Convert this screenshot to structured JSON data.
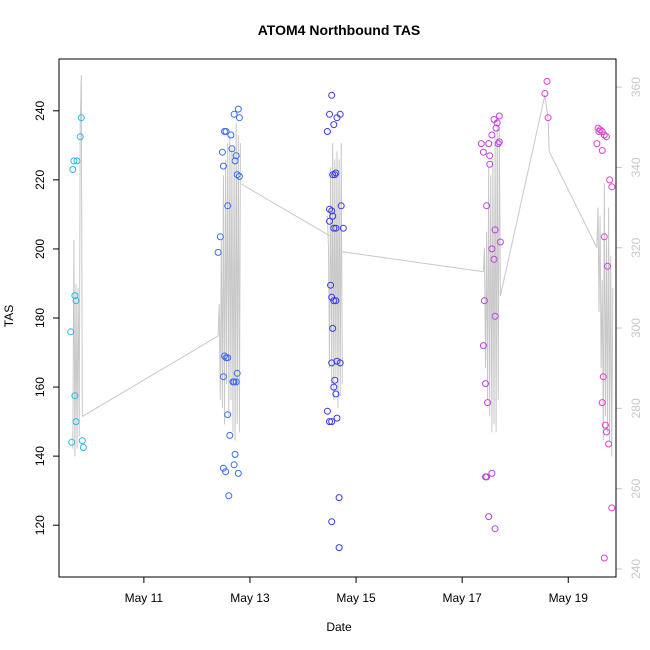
{
  "chart_data": {
    "type": "scatter",
    "title": "ATOM4 Northbound TAS",
    "xlabel": "Date",
    "ylabel": "TAS",
    "xlim": [
      9.4,
      19.9
    ],
    "ylim": [
      105,
      255
    ],
    "y2lim": [
      238,
      367
    ],
    "x_ticks": [
      {
        "value": 11,
        "label": "May 11"
      },
      {
        "value": 13,
        "label": "May 13"
      },
      {
        "value": 15,
        "label": "May 15"
      },
      {
        "value": 17,
        "label": "May 17"
      },
      {
        "value": 19,
        "label": "May 19"
      }
    ],
    "y_ticks": [
      120,
      140,
      160,
      180,
      200,
      220,
      240
    ],
    "y2_ticks": [
      240,
      260,
      280,
      300,
      320,
      340,
      360
    ],
    "colors": {
      "group1": "#2fb6e8",
      "group2": "#3a6df0",
      "group3": "#3a3ae8",
      "group4": "#c040e0",
      "group5": "#e040d0",
      "line": "#c8c8c8"
    },
    "scatter_groups": [
      {
        "color_key": "group1",
        "points": [
          [
            9.66,
            223
          ],
          [
            9.68,
            225.5
          ],
          [
            9.74,
            225.5
          ],
          [
            9.64,
            144
          ],
          [
            9.62,
            176
          ],
          [
            9.7,
            186.5
          ],
          [
            9.72,
            185
          ],
          [
            9.7,
            157.5
          ],
          [
            9.72,
            150
          ],
          [
            9.8,
            232.5
          ],
          [
            9.82,
            238
          ],
          [
            9.84,
            144.5
          ],
          [
            9.86,
            142.5
          ]
        ]
      },
      {
        "color_key": "group2",
        "points": [
          [
            12.4,
            199
          ],
          [
            12.44,
            203.5
          ],
          [
            12.48,
            228
          ],
          [
            12.5,
            224
          ],
          [
            12.52,
            234
          ],
          [
            12.55,
            234
          ],
          [
            12.58,
            212.5
          ],
          [
            12.52,
            169
          ],
          [
            12.55,
            168.5
          ],
          [
            12.58,
            168.5
          ],
          [
            12.5,
            163
          ],
          [
            12.58,
            152
          ],
          [
            12.62,
            146
          ],
          [
            12.5,
            136.5
          ],
          [
            12.54,
            135.5
          ],
          [
            12.6,
            128.5
          ],
          [
            12.64,
            233
          ],
          [
            12.66,
            229
          ],
          [
            12.7,
            239
          ],
          [
            12.72,
            225.5
          ],
          [
            12.74,
            227
          ],
          [
            12.76,
            221.5
          ],
          [
            12.8,
            221
          ],
          [
            12.78,
            240.5
          ],
          [
            12.8,
            238
          ],
          [
            12.68,
            161.5
          ],
          [
            12.7,
            161.5
          ],
          [
            12.74,
            161.5
          ],
          [
            12.76,
            164
          ],
          [
            12.7,
            137.5
          ],
          [
            12.72,
            140.5
          ],
          [
            12.78,
            135
          ]
        ]
      },
      {
        "color_key": "group3",
        "points": [
          [
            14.46,
            234
          ],
          [
            14.5,
            239
          ],
          [
            14.54,
            244.5
          ],
          [
            14.58,
            236
          ],
          [
            14.5,
            211.5
          ],
          [
            14.54,
            211
          ],
          [
            14.56,
            209.5
          ],
          [
            14.5,
            208
          ],
          [
            14.58,
            206
          ],
          [
            14.62,
            206
          ],
          [
            14.56,
            221.5
          ],
          [
            14.6,
            221.5
          ],
          [
            14.62,
            222
          ],
          [
            14.64,
            238
          ],
          [
            14.7,
            239
          ],
          [
            14.72,
            212.5
          ],
          [
            14.76,
            206
          ],
          [
            14.52,
            189.5
          ],
          [
            14.54,
            186
          ],
          [
            14.58,
            185
          ],
          [
            14.62,
            185
          ],
          [
            14.56,
            177
          ],
          [
            14.54,
            167
          ],
          [
            14.64,
            167.5
          ],
          [
            14.7,
            167
          ],
          [
            14.6,
            162
          ],
          [
            14.58,
            160
          ],
          [
            14.62,
            158
          ],
          [
            14.46,
            153
          ],
          [
            14.5,
            150
          ],
          [
            14.54,
            150
          ],
          [
            14.64,
            151
          ],
          [
            14.54,
            121
          ],
          [
            14.68,
            128
          ],
          [
            14.68,
            113.5
          ]
        ]
      },
      {
        "color_key": "group4",
        "points": [
          [
            17.36,
            230.5
          ],
          [
            17.4,
            228
          ],
          [
            17.46,
            212.5
          ],
          [
            17.5,
            230.5
          ],
          [
            17.52,
            224.5
          ],
          [
            17.52,
            227
          ],
          [
            17.56,
            233
          ],
          [
            17.6,
            237.5
          ],
          [
            17.64,
            235
          ],
          [
            17.66,
            236.5
          ],
          [
            17.7,
            238.5
          ],
          [
            17.68,
            230.5
          ],
          [
            17.7,
            231
          ],
          [
            17.62,
            205.5
          ],
          [
            17.72,
            202
          ],
          [
            17.56,
            200
          ],
          [
            17.6,
            197
          ],
          [
            17.42,
            185
          ],
          [
            17.62,
            180.5
          ],
          [
            17.4,
            172
          ],
          [
            17.44,
            161
          ],
          [
            17.48,
            155.5
          ],
          [
            17.44,
            134
          ],
          [
            17.46,
            134
          ],
          [
            17.56,
            135
          ],
          [
            17.5,
            122.5
          ],
          [
            17.62,
            119
          ]
        ]
      },
      {
        "color_key": "group5",
        "points": [
          [
            18.56,
            245
          ],
          [
            18.6,
            248.5
          ],
          [
            18.62,
            238
          ],
          [
            19.54,
            230.5
          ],
          [
            19.56,
            235
          ],
          [
            19.58,
            234
          ],
          [
            19.6,
            234.5
          ],
          [
            19.64,
            234
          ],
          [
            19.68,
            233
          ],
          [
            19.72,
            232.5
          ],
          [
            19.64,
            228.5
          ],
          [
            19.68,
            203.5
          ],
          [
            19.74,
            195
          ],
          [
            19.78,
            220
          ],
          [
            19.82,
            218
          ],
          [
            19.66,
            163
          ],
          [
            19.64,
            155.5
          ],
          [
            19.7,
            149
          ],
          [
            19.72,
            147
          ],
          [
            19.76,
            143.5
          ],
          [
            19.82,
            125
          ],
          [
            19.68,
            110.5
          ]
        ]
      }
    ],
    "line_series": {
      "name": "",
      "axis": "right",
      "segments": [
        [
          [
            9.66,
            270
          ],
          [
            9.68,
            322
          ],
          [
            9.7,
            268
          ],
          [
            9.72,
            311
          ],
          [
            9.74,
            270
          ],
          [
            9.76,
            310
          ],
          [
            9.78,
            273
          ],
          [
            9.8,
            350
          ],
          [
            9.82,
            363
          ],
          [
            9.84,
            278
          ]
        ],
        [
          [
            9.84,
            278
          ],
          [
            12.4,
            298
          ]
        ],
        [
          [
            12.4,
            298
          ],
          [
            12.42,
            306
          ],
          [
            12.44,
            282
          ],
          [
            12.46,
            322
          ],
          [
            12.48,
            280
          ],
          [
            12.5,
            338
          ],
          [
            12.52,
            276
          ],
          [
            12.54,
            342
          ],
          [
            12.56,
            286
          ],
          [
            12.58,
            346
          ],
          [
            12.6,
            278
          ],
          [
            12.62,
            348
          ],
          [
            12.64,
            282
          ],
          [
            12.66,
            345
          ],
          [
            12.68,
            274
          ],
          [
            12.7,
            344
          ],
          [
            12.72,
            272
          ],
          [
            12.74,
            351
          ],
          [
            12.76,
            276
          ],
          [
            12.78,
            348
          ],
          [
            12.8,
            274
          ],
          [
            12.82,
            346
          ]
        ],
        [
          [
            12.82,
            336
          ],
          [
            14.5,
            323
          ]
        ],
        [
          [
            14.46,
            328
          ],
          [
            14.48,
            320
          ],
          [
            14.5,
            290
          ],
          [
            14.52,
            340
          ],
          [
            14.54,
            286
          ],
          [
            14.56,
            346
          ],
          [
            14.58,
            282
          ],
          [
            14.6,
            342
          ],
          [
            14.62,
            288
          ],
          [
            14.64,
            344
          ],
          [
            14.66,
            280
          ],
          [
            14.68,
            342
          ],
          [
            14.7,
            283
          ],
          [
            14.72,
            346
          ],
          [
            14.74,
            286
          ]
        ],
        [
          [
            14.74,
            319
          ],
          [
            17.4,
            314
          ]
        ],
        [
          [
            17.4,
            314
          ],
          [
            17.42,
            320
          ],
          [
            17.44,
            290
          ],
          [
            17.46,
            324
          ],
          [
            17.48,
            282
          ],
          [
            17.5,
            340
          ],
          [
            17.52,
            278
          ],
          [
            17.54,
            338
          ],
          [
            17.56,
            274
          ],
          [
            17.58,
            342
          ],
          [
            17.6,
            276
          ],
          [
            17.62,
            348
          ],
          [
            17.64,
            274
          ],
          [
            17.66,
            352
          ],
          [
            17.68,
            282
          ],
          [
            17.7,
            350
          ],
          [
            17.72,
            308
          ]
        ],
        [
          [
            17.72,
            308
          ],
          [
            18.56,
            358
          ],
          [
            18.62,
            352
          ],
          [
            18.64,
            344
          ]
        ],
        [
          [
            18.64,
            344
          ],
          [
            19.54,
            320
          ]
        ],
        [
          [
            19.54,
            320
          ],
          [
            19.56,
            330
          ],
          [
            19.58,
            304
          ],
          [
            19.6,
            328
          ],
          [
            19.62,
            290
          ],
          [
            19.64,
            312
          ],
          [
            19.66,
            272
          ],
          [
            19.68,
            336
          ],
          [
            19.7,
            278
          ],
          [
            19.72,
            322
          ],
          [
            19.74,
            274
          ],
          [
            19.76,
            330
          ],
          [
            19.78,
            272
          ],
          [
            19.8,
            318
          ],
          [
            19.82,
            268
          ],
          [
            19.84,
            310
          ]
        ]
      ]
    }
  }
}
